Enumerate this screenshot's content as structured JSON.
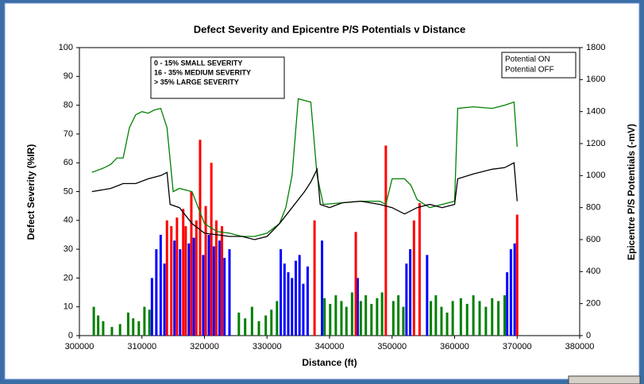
{
  "chart_data": {
    "type": "bar-line-combo",
    "title": "Defect Severity and Epicentre P/S Potentials v Distance",
    "x_label": "Distance (ft)",
    "y_label": "Defect Severity (%IR)",
    "y2_label": "Epicentre P/S Potentials (-mV)",
    "xlim": [
      300000,
      380000
    ],
    "xticks": [
      300000,
      310000,
      320000,
      330000,
      340000,
      350000,
      360000,
      370000,
      380000
    ],
    "ylim": [
      0,
      100
    ],
    "yticks": [
      0,
      10,
      20,
      30,
      40,
      50,
      60,
      70,
      80,
      90,
      100
    ],
    "y2lim": [
      0,
      1800
    ],
    "y2ticks": [
      0,
      200,
      400,
      600,
      800,
      1000,
      1200,
      1400,
      1600,
      1800
    ],
    "series": [
      {
        "name": "0 - 15%  SMALL SEVERITY",
        "type": "bar",
        "color": "#008000",
        "x": [
          302300,
          303000,
          303800,
          305200,
          306500,
          307800,
          308600,
          309500,
          310400,
          311200,
          325500,
          326500,
          327600,
          328700,
          329800,
          330700,
          331600,
          339200,
          340100,
          341000,
          341900,
          342700,
          343600,
          345000,
          345800,
          346700,
          347600,
          348400,
          350200,
          351000,
          351800,
          356200,
          357000,
          357900,
          358800,
          359700,
          361000,
          362000,
          363000,
          364000,
          365000,
          366000,
          367000,
          368000
        ],
        "values": [
          10,
          7,
          5,
          3,
          4,
          8,
          6,
          5,
          10,
          9,
          8,
          6,
          10,
          5,
          7,
          9,
          12,
          13,
          11,
          14,
          12,
          10,
          15,
          12,
          14,
          11,
          13,
          15,
          12,
          14,
          10,
          12,
          14,
          10,
          8,
          12,
          13,
          11,
          14,
          12,
          10,
          13,
          12,
          14
        ]
      },
      {
        "name": "16 - 35%  MEDIUM SEVERITY",
        "type": "bar",
        "color": "#0000ff",
        "x": [
          311600,
          312300,
          313000,
          313600,
          315200,
          316100,
          317500,
          318300,
          319800,
          320700,
          321500,
          322400,
          323200,
          324000,
          332200,
          332800,
          333400,
          334000,
          334600,
          335200,
          335800,
          336500,
          338800,
          344500,
          352300,
          352900,
          355600,
          368400,
          369000,
          369600
        ],
        "values": [
          20,
          30,
          35,
          25,
          33,
          30,
          32,
          34,
          28,
          35,
          31,
          33,
          27,
          30,
          30,
          25,
          22,
          20,
          26,
          28,
          18,
          24,
          33,
          20,
          25,
          30,
          28,
          22,
          30,
          32
        ]
      },
      {
        "name": ">  35%  LARGE SEVERITY",
        "type": "bar",
        "color": "#ff0000",
        "x": [
          314000,
          314700,
          315600,
          316600,
          317000,
          317900,
          318700,
          319300,
          320200,
          321100,
          321900,
          322800,
          337600,
          344200,
          349000,
          353500,
          354400,
          370000
        ],
        "values": [
          40,
          38,
          41,
          44,
          38,
          50,
          40,
          68,
          45,
          60,
          40,
          38,
          40,
          36,
          66,
          40,
          46,
          42
        ]
      },
      {
        "name": "Potential  ON",
        "type": "line",
        "axis": "y2",
        "color": "#008000",
        "x": [
          302000,
          304000,
          305000,
          306000,
          307000,
          308000,
          309000,
          310000,
          311000,
          312000,
          313000,
          314000,
          315000,
          316000,
          318000,
          320000,
          322000,
          324000,
          326000,
          328000,
          330000,
          332000,
          333000,
          334000,
          335000,
          336000,
          337000,
          338000,
          339000,
          342000,
          345000,
          348000,
          349000,
          350000,
          352000,
          353000,
          354000,
          356000,
          358000,
          360000,
          360500,
          363000,
          366000,
          368000,
          369500,
          370000
        ],
        "values": [
          1020,
          1050,
          1070,
          1110,
          1110,
          1300,
          1380,
          1400,
          1390,
          1410,
          1420,
          1300,
          900,
          920,
          900,
          700,
          650,
          640,
          620,
          620,
          640,
          700,
          800,
          1000,
          1480,
          1470,
          1460,
          1000,
          820,
          830,
          840,
          840,
          820,
          980,
          980,
          940,
          850,
          800,
          820,
          840,
          1420,
          1430,
          1420,
          1440,
          1460,
          1180
        ]
      },
      {
        "name": "Potential  OFF",
        "type": "line",
        "axis": "y2",
        "color": "#000000",
        "x": [
          302000,
          305000,
          307000,
          309000,
          311000,
          313000,
          314000,
          314500,
          316000,
          318000,
          320000,
          322000,
          324000,
          326000,
          328000,
          330000,
          332000,
          334000,
          336000,
          337000,
          338000,
          338500,
          340000,
          342000,
          345000,
          348000,
          350000,
          352000,
          354000,
          356000,
          358000,
          360000,
          360500,
          363000,
          366000,
          368000,
          369500,
          370000
        ],
        "values": [
          900,
          920,
          950,
          950,
          980,
          1000,
          1020,
          820,
          800,
          700,
          640,
          630,
          620,
          620,
          600,
          620,
          700,
          800,
          900,
          960,
          1040,
          820,
          800,
          830,
          840,
          820,
          800,
          760,
          800,
          820,
          800,
          820,
          980,
          1010,
          1040,
          1050,
          1080,
          840
        ]
      }
    ]
  }
}
